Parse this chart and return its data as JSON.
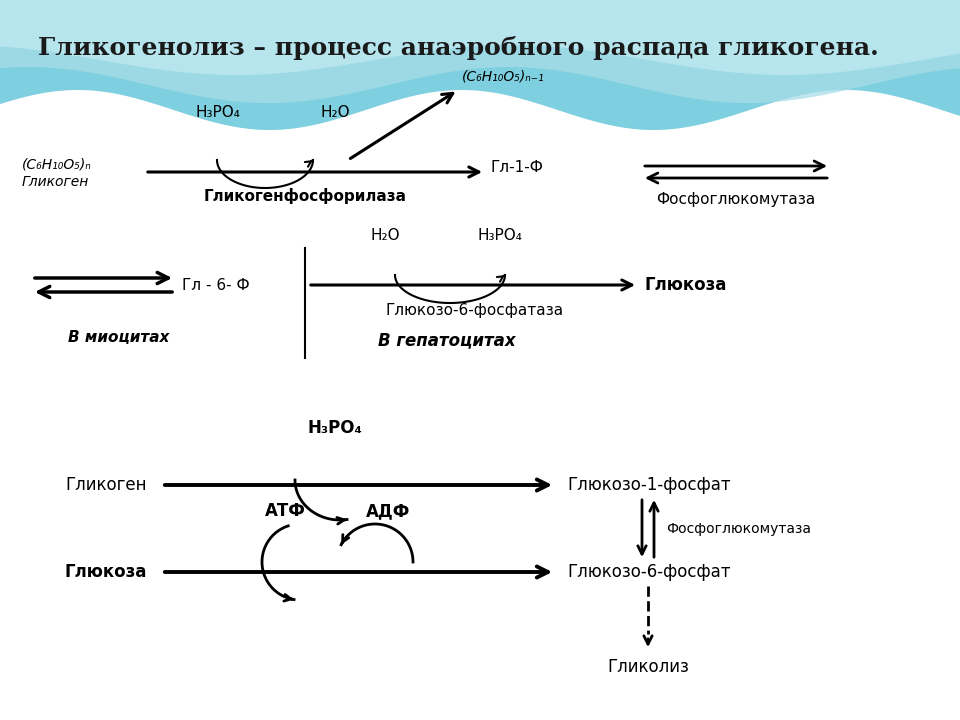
{
  "title": "Гликогенолиз – процесс анаэробного распада гликогена.",
  "title_fontsize": 18,
  "bg_color": "#ffffff",
  "section1": {
    "glycogen_label": "(C₆H₁₀O₅)ₙ",
    "glycogen_sublabel": "Гликоген",
    "enzyme1": "Гликогенфосфорилаза",
    "product1": "Гл-1-Ф",
    "product1_formula": "(C₆H₁₀O₅)ₙ₋₁",
    "cofactor1a": "H₃PO₄",
    "cofactor1b": "H₂O",
    "enzyme2": "Фосфоглюкомутаза"
  },
  "section2": {
    "product2": "Гл - 6- Ф",
    "label_myocytes": "В миоцитах",
    "label_hepatocytes": "В гепатоцитах",
    "enzyme3": "Глюкозо-6-фосфатаза",
    "product3": "Глюкоза",
    "cofactor2a": "H₂O",
    "cofactor2b": "H₃PO₄"
  },
  "section3": {
    "glycogen": "Гликоген",
    "glucose": "Глюкоза",
    "product_g1p": "Глюкозо-1-фосфат",
    "product_g6p": "Глюкозо-6-фосфат",
    "glycolysis": "Гликолиз",
    "cofactor3": "H₃PO₄",
    "cofactor4a": "АТФ",
    "cofactor4b": "АДФ",
    "enzyme4": "Фосфоглюкомутаза"
  }
}
